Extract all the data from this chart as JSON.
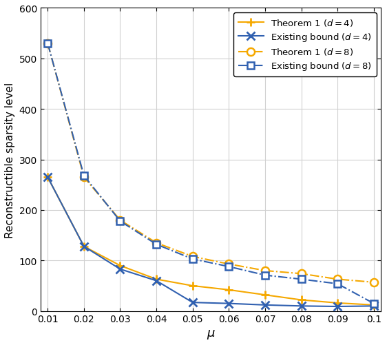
{
  "mu": [
    0.01,
    0.02,
    0.03,
    0.04,
    0.05,
    0.06,
    0.07,
    0.08,
    0.09,
    0.1
  ],
  "theorem1_d4": [
    265,
    128,
    90,
    63,
    50,
    42,
    32,
    22,
    16,
    12
  ],
  "existing_d4": [
    265,
    128,
    83,
    60,
    17,
    15,
    12,
    10,
    9,
    10
  ],
  "theorem1_d8": [
    530,
    265,
    180,
    135,
    108,
    93,
    80,
    74,
    63,
    57
  ],
  "existing_d8": [
    530,
    268,
    178,
    132,
    103,
    88,
    71,
    63,
    54,
    15
  ],
  "color_gold": "#F5A800",
  "color_blue": "#3060B0",
  "xlabel": "$\\mu$",
  "ylabel": "Reconstructible sparsity level",
  "ylim": [
    0,
    600
  ],
  "xlim": [
    0.008,
    0.102
  ],
  "yticks": [
    0,
    100,
    200,
    300,
    400,
    500,
    600
  ],
  "xticks": [
    0.01,
    0.02,
    0.03,
    0.04,
    0.05,
    0.06,
    0.07,
    0.08,
    0.09,
    0.1
  ],
  "xtick_labels": [
    "0.01",
    "0.02",
    "0.03",
    "0.04",
    "0.05",
    "0.06",
    "0.07",
    "0.08",
    "0.09",
    "0.1"
  ],
  "legend_labels": [
    "Theorem 1 ($d = 4$)",
    "Existing bound ($d = 4$)",
    "Theorem 1 ($d = 8$)",
    "Existing bound ($d = 8$)"
  ]
}
